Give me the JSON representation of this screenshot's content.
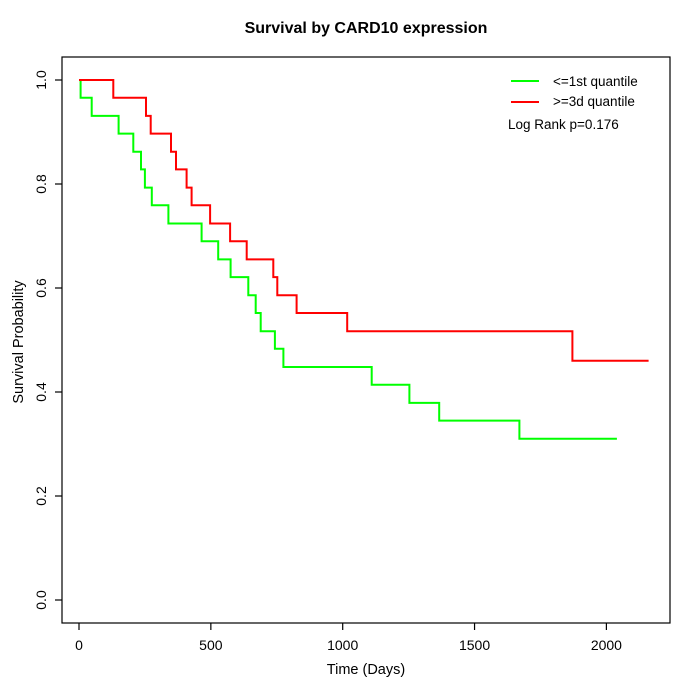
{
  "chart": {
    "title": "Survival by CARD10 expression",
    "xlabel": "Time (Days)",
    "ylabel": "Survival Probability",
    "log_rank_text": "Log Rank p=0.176"
  },
  "chart_data": {
    "type": "line",
    "subtype": "kaplan-meier-step",
    "title": "Survival by CARD10 expression",
    "xlabel": "Time (Days)",
    "ylabel": "Survival Probability",
    "xlim": [
      0,
      2200
    ],
    "ylim": [
      0,
      1
    ],
    "xticks": [
      0,
      500,
      1000,
      1500,
      2000
    ],
    "yticks": [
      0.0,
      0.2,
      0.4,
      0.6,
      0.8,
      1.0
    ],
    "grid": false,
    "legend_position": "topright",
    "annotation": "Log Rank p=0.176",
    "axis_color": "#000000",
    "series": [
      {
        "name": "<=1st quantile",
        "color": "#00ff00",
        "points": [
          [
            0,
            1.0
          ],
          [
            6,
            0.966
          ],
          [
            48,
            0.931
          ],
          [
            150,
            0.897
          ],
          [
            206,
            0.862
          ],
          [
            235,
            0.828
          ],
          [
            250,
            0.793
          ],
          [
            276,
            0.759
          ],
          [
            339,
            0.724
          ],
          [
            465,
            0.69
          ],
          [
            528,
            0.655
          ],
          [
            575,
            0.621
          ],
          [
            642,
            0.586
          ],
          [
            670,
            0.552
          ],
          [
            689,
            0.517
          ],
          [
            743,
            0.483
          ],
          [
            775,
            0.448
          ],
          [
            1110,
            0.414
          ],
          [
            1253,
            0.379
          ],
          [
            1366,
            0.345
          ],
          [
            1670,
            0.31
          ],
          [
            2040,
            0.31
          ]
        ]
      },
      {
        "name": ">=3d quantile",
        "color": "#ff0000",
        "points": [
          [
            0,
            1.0
          ],
          [
            130,
            0.966
          ],
          [
            254,
            0.931
          ],
          [
            272,
            0.897
          ],
          [
            349,
            0.862
          ],
          [
            368,
            0.828
          ],
          [
            408,
            0.793
          ],
          [
            427,
            0.759
          ],
          [
            497,
            0.724
          ],
          [
            573,
            0.69
          ],
          [
            636,
            0.655
          ],
          [
            737,
            0.621
          ],
          [
            752,
            0.586
          ],
          [
            825,
            0.552
          ],
          [
            1017,
            0.517
          ],
          [
            1871,
            0.46
          ],
          [
            2160,
            0.46
          ]
        ]
      }
    ]
  }
}
